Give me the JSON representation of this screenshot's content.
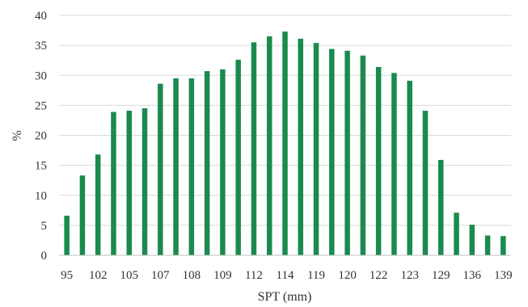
{
  "chart_data": {
    "type": "bar",
    "xlabel": "SPT (mm)",
    "ylabel": "%",
    "ylim": [
      0,
      40
    ],
    "yticks": [
      0,
      5,
      10,
      15,
      20,
      25,
      30,
      35,
      40
    ],
    "grid": true,
    "bar_color": "#1a8a4e",
    "categories": [
      "95",
      "",
      "102",
      "",
      "105",
      "",
      "107",
      "",
      "108",
      "",
      "109",
      "",
      "112",
      "",
      "114",
      "",
      "119",
      "",
      "120",
      "",
      "122",
      "",
      "123",
      "",
      "129",
      "",
      "136",
      "",
      "139"
    ],
    "values": [
      6.6,
      13.3,
      16.8,
      23.9,
      24.1,
      24.5,
      28.6,
      29.5,
      29.5,
      30.7,
      31.0,
      32.6,
      35.5,
      36.5,
      37.3,
      36.1,
      35.4,
      34.4,
      34.1,
      33.3,
      31.4,
      30.4,
      29.1,
      24.1,
      15.9,
      7.1,
      5.1,
      3.3,
      3.2
    ]
  }
}
